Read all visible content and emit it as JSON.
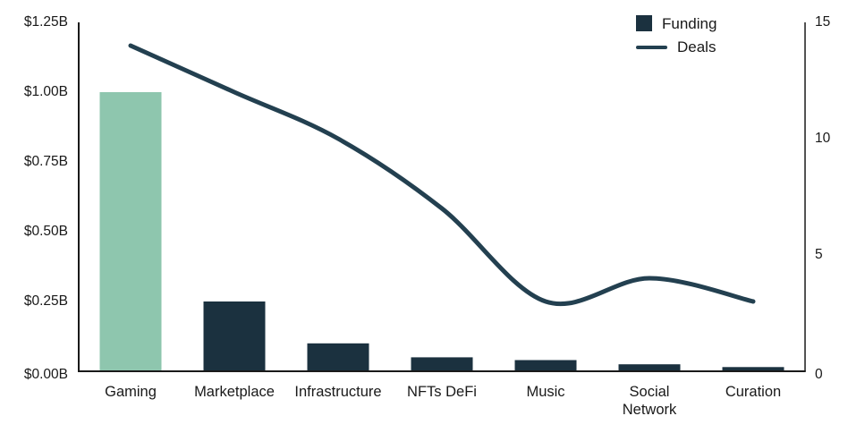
{
  "chart_data": {
    "type": "combo_bar_line",
    "title": "",
    "categories": [
      "Gaming",
      "Marketplace",
      "Infrastructure",
      "NFTs DeFi",
      "Music",
      "Social Network",
      "Curation"
    ],
    "category_label_lines": [
      [
        "Gaming"
      ],
      [
        "Marketplace"
      ],
      [
        "Infrastructure"
      ],
      [
        "NFTs DeFi"
      ],
      [
        "Music"
      ],
      [
        "Social",
        "Network"
      ],
      [
        "Curation"
      ]
    ],
    "series": [
      {
        "name": "Funding",
        "type": "bar",
        "axis": "left",
        "unit": "USD billions",
        "values": [
          1.0,
          0.25,
          0.1,
          0.05,
          0.04,
          0.025,
          0.015
        ],
        "bar_colors": [
          "#8ec6ae",
          "#1b313f",
          "#1b313f",
          "#1b313f",
          "#1b313f",
          "#1b313f",
          "#1b313f"
        ]
      },
      {
        "name": "Deals",
        "type": "line",
        "axis": "right",
        "values": [
          14,
          12,
          10,
          7,
          3,
          4,
          3
        ],
        "color": "#234050",
        "stroke_width": 5
      }
    ],
    "left_axis": {
      "tick_labels": [
        "$0.00B",
        "$0.25B",
        "$0.50B",
        "$0.75B",
        "$1.00B",
        "$1.25B"
      ],
      "tick_values": [
        0,
        0.25,
        0.5,
        0.75,
        1,
        1.25
      ],
      "min": 0,
      "max": 1.25
    },
    "right_axis": {
      "tick_labels": [
        "0",
        "5",
        "10",
        "15"
      ],
      "tick_values": [
        0,
        5,
        10,
        15
      ],
      "min": 0,
      "max": 15
    },
    "legend": {
      "position": "top-right",
      "items": [
        {
          "label": "Funding",
          "swatch": "square",
          "color": "#1b313f"
        },
        {
          "label": "Deals",
          "swatch": "line",
          "color": "#234050"
        }
      ]
    },
    "grid": false,
    "background": "#ffffff",
    "axis_color": "#1a1a1a"
  }
}
